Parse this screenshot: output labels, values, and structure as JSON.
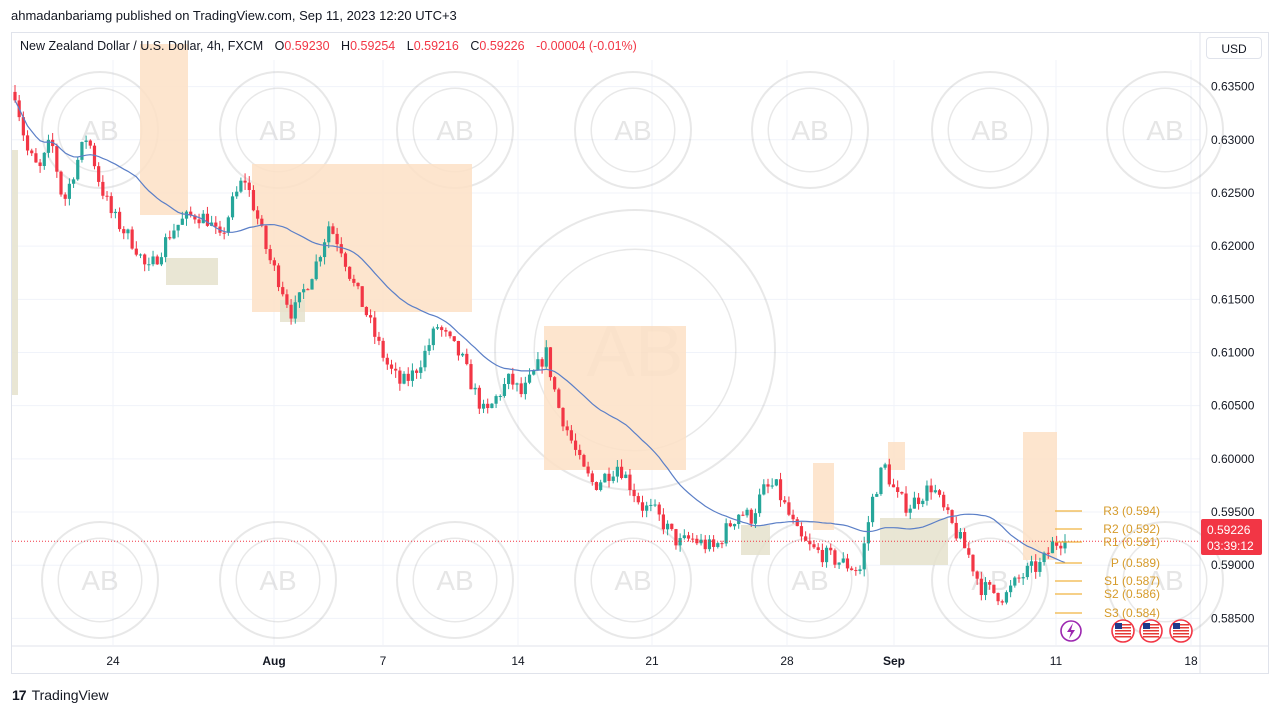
{
  "header": {
    "published": "ahmadanbariamg published on TradingView.com, Sep 11, 2023 12:20 UTC+3"
  },
  "legend": {
    "symbol": "New Zealand Dollar / U.S. Dollar, 4h, FXCM",
    "open_label": "O",
    "open": "0.59230",
    "high_label": "H",
    "high": "0.59254",
    "low_label": "L",
    "low": "0.59216",
    "close_label": "C",
    "close": "0.59226",
    "change": "-0.00004 (-0.01%)"
  },
  "currency_button": "USD",
  "price_label": {
    "price": "0.59226",
    "countdown": "03:39:12"
  },
  "footer": {
    "logo_text": "TradingView"
  },
  "colors": {
    "up": "#26a69a",
    "down": "#f23645",
    "ma": "#5b7fc7",
    "zone_supply": "#fde0c5",
    "zone_demand": "#e5e2cc",
    "pivot": "#f0b440"
  },
  "icons": [
    "lightning-icon",
    "us-flag-icon"
  ],
  "watermark": {
    "ring_text": "ARABIAN BUSINESS ACADEMY",
    "monogram": "AB"
  },
  "chart_data": {
    "type": "candlestick",
    "timeframe": "4h",
    "ylim": [
      0.5825,
      0.6375
    ],
    "y_ticks": [
      "0.63500",
      "0.63000",
      "0.62500",
      "0.62000",
      "0.61500",
      "0.61000",
      "0.60500",
      "0.60000",
      "0.59500",
      "0.59000",
      "0.58500"
    ],
    "x_ticks": [
      "24",
      "Aug",
      "7",
      "14",
      "21",
      "28",
      "Sep",
      "11",
      "18"
    ],
    "pivots": [
      {
        "label": "R3 (0.594)",
        "value": 0.594
      },
      {
        "label": "R2 (0.592)",
        "value": 0.592
      },
      {
        "label": "R1 (0.591)",
        "value": 0.591
      },
      {
        "label": "P (0.589)",
        "value": 0.589
      },
      {
        "label": "S1 (0.587)",
        "value": 0.587
      },
      {
        "label": "S2 (0.586)",
        "value": 0.586
      },
      {
        "label": "S3 (0.584)",
        "value": 0.584
      }
    ],
    "last_price": 0.59226,
    "price_path": [
      0.6345,
      0.629,
      0.627,
      0.63,
      0.624,
      0.6275,
      0.6305,
      0.626,
      0.623,
      0.6215,
      0.62,
      0.6175,
      0.6195,
      0.6215,
      0.6225,
      0.623,
      0.6225,
      0.6205,
      0.624,
      0.6265,
      0.623,
      0.619,
      0.6165,
      0.6135,
      0.616,
      0.6185,
      0.622,
      0.62,
      0.6165,
      0.614,
      0.611,
      0.6085,
      0.607,
      0.608,
      0.61,
      0.6125,
      0.611,
      0.6095,
      0.6065,
      0.604,
      0.606,
      0.6075,
      0.606,
      0.608,
      0.61,
      0.605,
      0.602,
      0.599,
      0.5975,
      0.5985,
      0.5995,
      0.5975,
      0.5955,
      0.595,
      0.5935,
      0.592,
      0.5925,
      0.592,
      0.5915,
      0.5935,
      0.595,
      0.5945,
      0.597,
      0.5975,
      0.595,
      0.5925,
      0.5915,
      0.591,
      0.5905,
      0.59,
      0.5895,
      0.596,
      0.5995,
      0.5965,
      0.5955,
      0.5965,
      0.5975,
      0.595,
      0.593,
      0.591,
      0.588,
      0.5875,
      0.587,
      0.5885,
      0.5895,
      0.59,
      0.592,
      0.5925
    ]
  }
}
